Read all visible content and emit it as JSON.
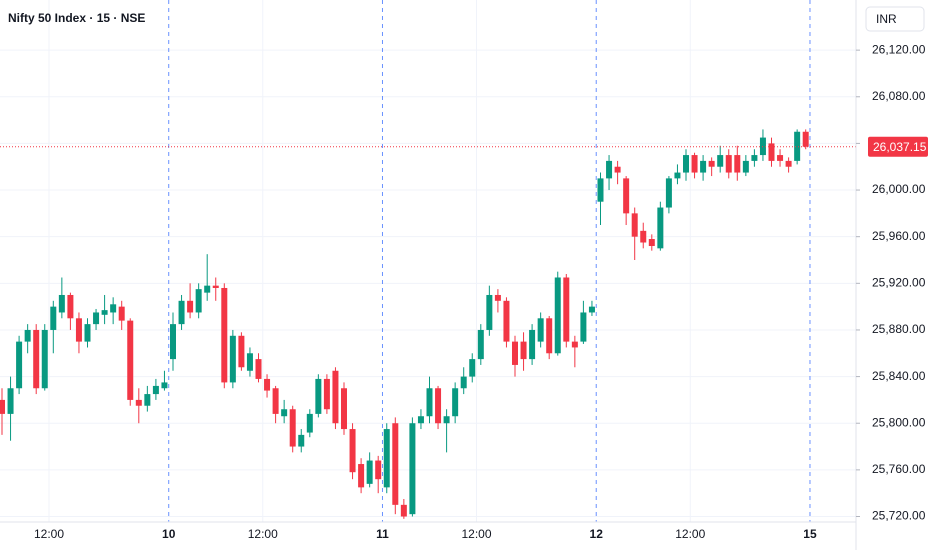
{
  "chart_data": {
    "type": "candlestick",
    "title": "Nifty 50 Index · 15 · NSE",
    "currency": "INR",
    "up_color": "#089981",
    "down_color": "#f23645",
    "categories": [
      null,
      null,
      null,
      null,
      null,
      null,
      null,
      null,
      null,
      null,
      null,
      null,
      null,
      null,
      null,
      null,
      null,
      null,
      null,
      null,
      null,
      null,
      null,
      null,
      null,
      null,
      null,
      null,
      null,
      null,
      null,
      null,
      null,
      null,
      null,
      null,
      null,
      null,
      null,
      null,
      null,
      null,
      null,
      null,
      null,
      null,
      null,
      null,
      null,
      null,
      null,
      null,
      null,
      null,
      null,
      null,
      null,
      null,
      null,
      null,
      null,
      null,
      null,
      null,
      null,
      null,
      null,
      null,
      null,
      null,
      null,
      null,
      null,
      null,
      null,
      null,
      null,
      null,
      null,
      null,
      null,
      null,
      null,
      null,
      null,
      null,
      null,
      null,
      null,
      null,
      null,
      null,
      null,
      null,
      null
    ],
    "open": [
      25820,
      25808,
      25830,
      25870,
      25880,
      25830,
      25880,
      25895,
      25910,
      25890,
      25870,
      25885,
      25893,
      25895,
      25900,
      25888,
      25820,
      25815,
      25825,
      25830,
      25855,
      25885,
      25905,
      25895,
      25912,
      25918,
      25916,
      25835,
      25875,
      25845,
      25855,
      25838,
      25830,
      25806,
      25812,
      25780,
      25792,
      25808,
      25838,
      25845,
      25830,
      25795,
      25765,
      25748,
      25768,
      25745,
      25800,
      25730,
      25722,
      25800,
      25806,
      25830,
      25800,
      25806,
      25830,
      25840,
      25855,
      25880,
      25910,
      25905,
      25870,
      25870,
      25855,
      25870,
      25890,
      25860,
      25925,
      25870,
      25870,
      25895,
      25990,
      26010,
      26020,
      26010,
      25980,
      25965,
      25958,
      25950,
      25985,
      26010,
      26015,
      26030,
      26015,
      26025,
      26020,
      26030,
      26030,
      26015,
      26025,
      26030,
      26040,
      26030,
      26025,
      26025,
      26050
    ],
    "high": [
      25830,
      25840,
      25875,
      25885,
      25885,
      25885,
      25905,
      25925,
      25912,
      25895,
      25890,
      25898,
      25910,
      25908,
      25905,
      25890,
      25830,
      25832,
      25838,
      25845,
      25895,
      25910,
      25920,
      25920,
      25945,
      25925,
      25920,
      25880,
      25878,
      25865,
      25860,
      25842,
      25832,
      25820,
      25815,
      25795,
      25812,
      25842,
      25842,
      25848,
      25835,
      25800,
      25770,
      25775,
      25772,
      25800,
      25805,
      25735,
      25805,
      25812,
      25840,
      25832,
      25812,
      25835,
      25848,
      25860,
      25885,
      25918,
      25915,
      25908,
      25875,
      25878,
      25885,
      25895,
      25892,
      25930,
      25928,
      25875,
      25905,
      25905,
      26015,
      26030,
      26025,
      26012,
      25985,
      25972,
      25962,
      25990,
      26012,
      26022,
      26035,
      26032,
      26030,
      26028,
      26038,
      26035,
      26038,
      26030,
      26035,
      26052,
      26045,
      26035,
      26028,
      26052,
      26052
    ],
    "low": [
      25790,
      25785,
      25825,
      25860,
      25825,
      25828,
      25860,
      25890,
      25880,
      25860,
      25865,
      25880,
      25885,
      25885,
      25880,
      25815,
      25800,
      25810,
      25820,
      25828,
      25845,
      25880,
      25890,
      25890,
      25905,
      25905,
      25830,
      25830,
      25845,
      25840,
      25835,
      25822,
      25800,
      25800,
      25775,
      25775,
      25788,
      25805,
      25808,
      25795,
      25790,
      25752,
      25740,
      25745,
      25740,
      25740,
      25722,
      25718,
      25720,
      25795,
      25800,
      25795,
      25775,
      25800,
      25825,
      25835,
      25850,
      25875,
      25895,
      25865,
      25840,
      25845,
      25850,
      25865,
      25855,
      25858,
      25865,
      25848,
      25868,
      25892,
      25970,
      26000,
      26005,
      25970,
      25940,
      25950,
      25948,
      25948,
      25980,
      26005,
      26008,
      26010,
      26008,
      26012,
      26015,
      26010,
      26008,
      26012,
      26020,
      26025,
      26020,
      26020,
      26015,
      26022,
      26035
    ],
    "close": [
      25808,
      25830,
      25870,
      25880,
      25830,
      25880,
      25900,
      25910,
      25890,
      25870,
      25885,
      25895,
      25897,
      25902,
      25888,
      25820,
      25815,
      25825,
      25832,
      25835,
      25885,
      25905,
      25895,
      25915,
      25918,
      25916,
      25835,
      25875,
      25848,
      25860,
      25838,
      25828,
      25808,
      25812,
      25780,
      25790,
      25808,
      25838,
      25812,
      25800,
      25795,
      25758,
      25745,
      25768,
      25752,
      25795,
      25730,
      25720,
      25800,
      25806,
      25830,
      25800,
      25806,
      25830,
      25840,
      25855,
      25880,
      25910,
      25905,
      25870,
      25850,
      25855,
      25880,
      25890,
      25860,
      25925,
      25870,
      25865,
      25895,
      25900,
      26010,
      26025,
      26015,
      25980,
      25960,
      25955,
      25952,
      25985,
      26010,
      26015,
      26030,
      26015,
      26025,
      26020,
      26030,
      26015,
      26015,
      26025,
      26030,
      26045,
      26025,
      26025,
      26020,
      26050,
      26037.15
    ],
    "last_price": {
      "value": 26037.15,
      "label": "26,037.15"
    },
    "ylim": [
      25717,
      26163
    ],
    "yticks": [
      {
        "value": 25720,
        "label": "25,720.00"
      },
      {
        "value": 25760,
        "label": "25,760.00"
      },
      {
        "value": 25800,
        "label": "25,800.00"
      },
      {
        "value": 25840,
        "label": "25,840.00"
      },
      {
        "value": 25880,
        "label": "25,880.00"
      },
      {
        "value": 25920,
        "label": "25,920.00"
      },
      {
        "value": 25960,
        "label": "25,960.00"
      },
      {
        "value": 26000,
        "label": "26,000.00"
      },
      {
        "value": 26040,
        "label": "26,040.00"
      },
      {
        "value": 26080,
        "label": "26,080.00"
      },
      {
        "value": 26120,
        "label": "26,120.00"
      }
    ],
    "xticks": [
      {
        "value": 6,
        "label": "12:00"
      },
      {
        "value": 20,
        "label": "10"
      },
      {
        "value": 31,
        "label": "12:00"
      },
      {
        "value": 45,
        "label": "11"
      },
      {
        "value": 56,
        "label": "12:00"
      },
      {
        "value": 70,
        "label": "12"
      },
      {
        "value": 81,
        "label": "12:00"
      },
      {
        "value": 95,
        "label": "15"
      }
    ],
    "grid": true
  }
}
